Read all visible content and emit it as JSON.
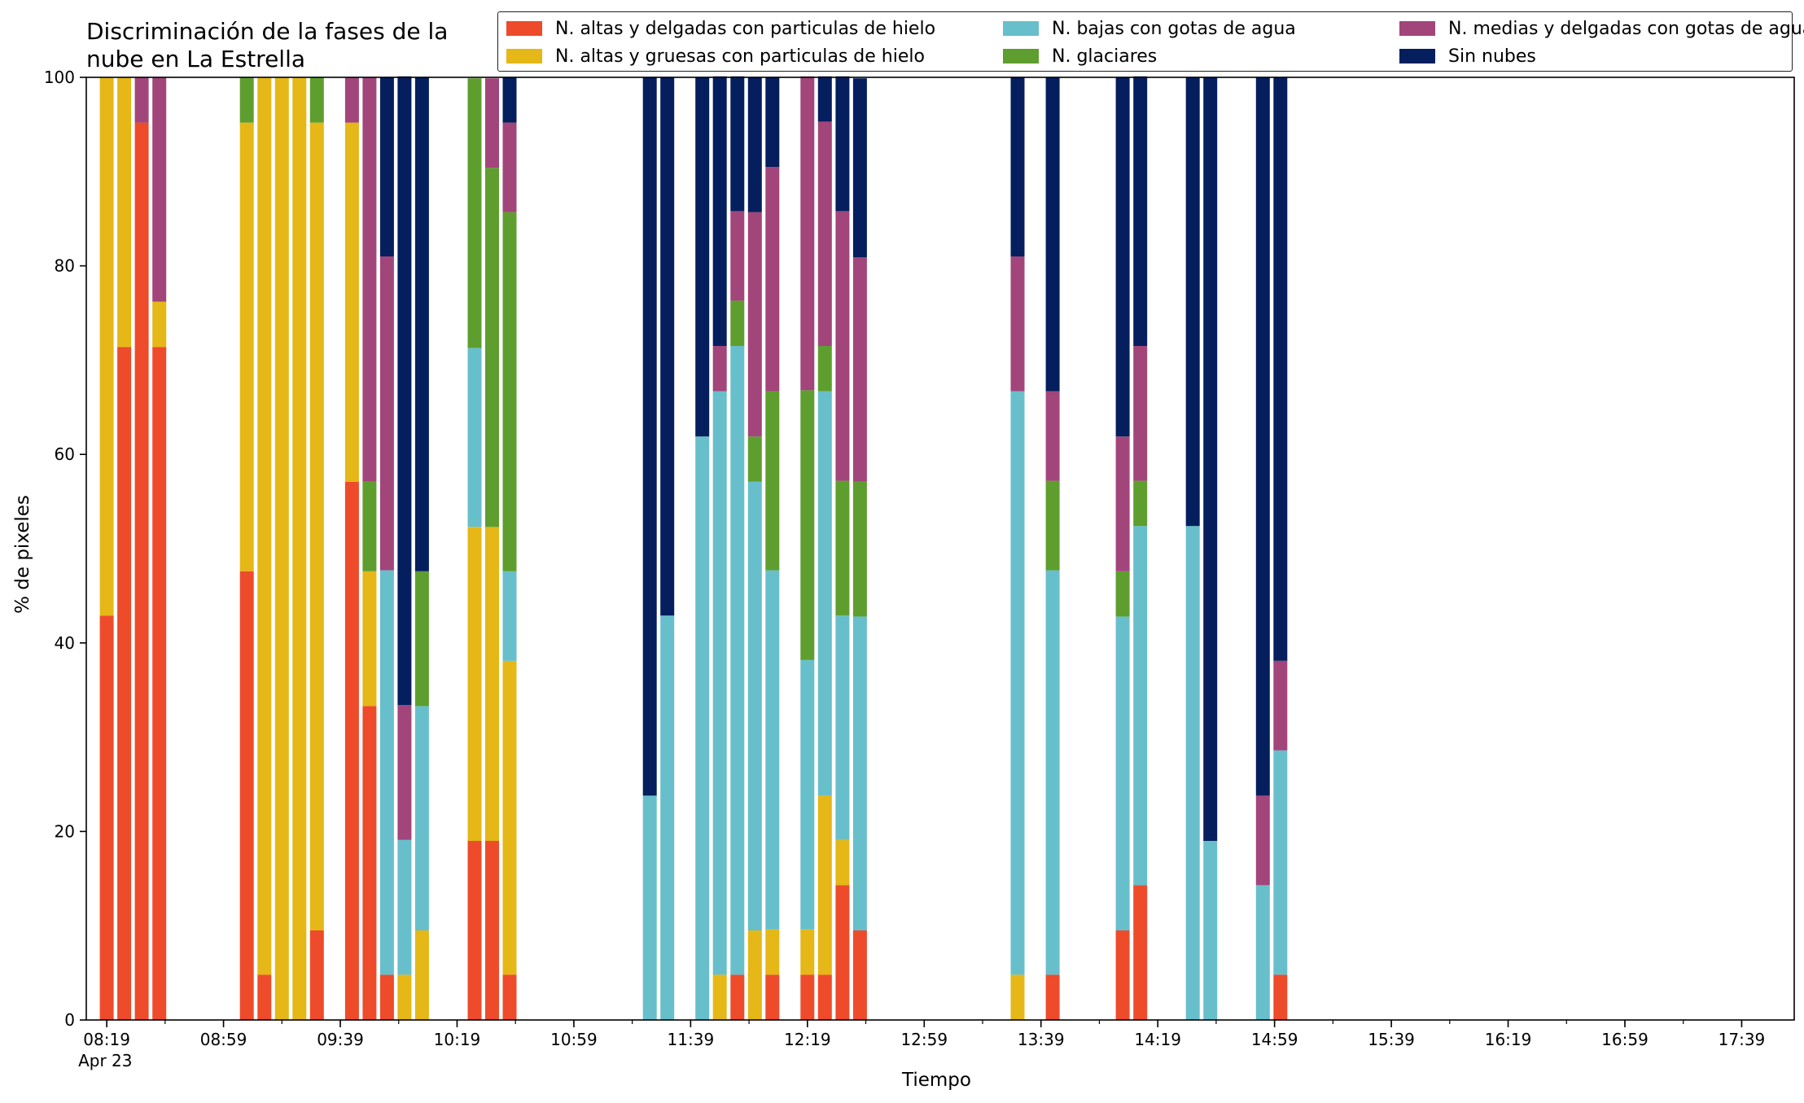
{
  "chart_data": {
    "type": "bar",
    "stacked": true,
    "title_lines": [
      "Discriminación de la fases de la",
      "nube en La Estrella"
    ],
    "xlabel": "Tiempo",
    "ylabel": "% de pixeles",
    "ylim": [
      0,
      100
    ],
    "yticks": [
      0,
      20,
      40,
      60,
      80,
      100
    ],
    "x_ticks": [
      {
        "time": "08:19",
        "label": "08:19",
        "sublabel": "Apr 23"
      },
      {
        "time": "08:59",
        "label": "08:59"
      },
      {
        "time": "09:39",
        "label": "09:39"
      },
      {
        "time": "10:19",
        "label": "10:19"
      },
      {
        "time": "10:59",
        "label": "10:59"
      },
      {
        "time": "11:39",
        "label": "11:39"
      },
      {
        "time": "12:19",
        "label": "12:19"
      },
      {
        "time": "12:59",
        "label": "12:59"
      },
      {
        "time": "13:39",
        "label": "13:39"
      },
      {
        "time": "14:19",
        "label": "14:19"
      },
      {
        "time": "14:59",
        "label": "14:59"
      },
      {
        "time": "15:39",
        "label": "15:39"
      },
      {
        "time": "16:19",
        "label": "16:19"
      },
      {
        "time": "16:59",
        "label": "16:59"
      },
      {
        "time": "17:39",
        "label": "17:39"
      }
    ],
    "legend_position": "top-right",
    "series": [
      {
        "name": "N. altas y delgadas con particulas de hielo",
        "color": "#ee4b2b"
      },
      {
        "name": "N. altas y gruesas con particulas de hielo",
        "color": "#e5b717"
      },
      {
        "name": "N. bajas con gotas de agua",
        "color": "#67bfcb"
      },
      {
        "name": "N. glaciares",
        "color": "#5e9e2e"
      },
      {
        "name": "N. medias y delgadas con gotas de agua",
        "color": "#a2457a"
      },
      {
        "name": "Sin nubes",
        "color": "#051e5e"
      }
    ],
    "bars": [
      {
        "x": "08:19",
        "values": [
          42.9,
          57.1,
          0,
          0,
          0,
          0
        ]
      },
      {
        "x": "08:25",
        "values": [
          71.4,
          28.6,
          0,
          0,
          0,
          0
        ]
      },
      {
        "x": "08:31",
        "values": [
          95.2,
          0,
          0,
          0,
          4.8,
          0
        ]
      },
      {
        "x": "08:37",
        "values": [
          71.4,
          4.8,
          0,
          0,
          23.8,
          0
        ]
      },
      {
        "x": "09:07",
        "values": [
          47.6,
          47.6,
          0,
          4.8,
          0,
          0
        ]
      },
      {
        "x": "09:13",
        "values": [
          4.8,
          95.2,
          0,
          0,
          0,
          0
        ]
      },
      {
        "x": "09:19",
        "values": [
          0,
          100,
          0,
          0,
          0,
          0
        ]
      },
      {
        "x": "09:25",
        "values": [
          0,
          100,
          0,
          0,
          0,
          0
        ]
      },
      {
        "x": "09:31",
        "values": [
          9.5,
          85.7,
          0,
          4.8,
          0,
          0
        ]
      },
      {
        "x": "09:43",
        "values": [
          57.1,
          38.1,
          0,
          0,
          4.8,
          0
        ]
      },
      {
        "x": "09:49",
        "values": [
          33.3,
          14.3,
          0,
          9.5,
          42.9,
          0
        ]
      },
      {
        "x": "09:55",
        "values": [
          4.8,
          0,
          42.9,
          0,
          33.3,
          19.0
        ]
      },
      {
        "x": "10:01",
        "values": [
          0,
          4.8,
          14.3,
          0,
          14.3,
          66.7
        ]
      },
      {
        "x": "10:07",
        "values": [
          0,
          9.5,
          23.8,
          14.3,
          0,
          52.4
        ]
      },
      {
        "x": "10:25",
        "values": [
          19.0,
          33.3,
          19.0,
          28.6,
          0,
          0
        ]
      },
      {
        "x": "10:31",
        "values": [
          19.0,
          33.3,
          0,
          38.1,
          9.5,
          0
        ]
      },
      {
        "x": "10:37",
        "values": [
          4.8,
          33.3,
          9.5,
          38.1,
          9.5,
          4.8
        ]
      },
      {
        "x": "11:25",
        "values": [
          0,
          0,
          23.8,
          0,
          0,
          76.2
        ]
      },
      {
        "x": "11:31",
        "values": [
          0,
          0,
          42.9,
          0,
          0,
          57.1
        ]
      },
      {
        "x": "11:43",
        "values": [
          0,
          0,
          61.9,
          0,
          0,
          38.1
        ]
      },
      {
        "x": "11:49",
        "values": [
          0,
          4.8,
          61.9,
          0,
          4.8,
          28.6
        ]
      },
      {
        "x": "11:55",
        "values": [
          4.8,
          0,
          66.7,
          4.8,
          9.5,
          14.3
        ]
      },
      {
        "x": "12:01",
        "values": [
          0,
          9.5,
          47.6,
          4.8,
          23.8,
          14.3
        ]
      },
      {
        "x": "12:07",
        "values": [
          4.8,
          4.8,
          38.1,
          19.0,
          23.8,
          9.5
        ]
      },
      {
        "x": "12:19",
        "values": [
          4.8,
          4.8,
          28.6,
          28.6,
          33.3,
          0
        ]
      },
      {
        "x": "12:25",
        "values": [
          4.8,
          19.0,
          42.9,
          4.8,
          23.8,
          4.8
        ]
      },
      {
        "x": "12:31",
        "values": [
          14.3,
          4.8,
          23.8,
          14.3,
          28.6,
          14.3
        ]
      },
      {
        "x": "12:37",
        "values": [
          9.5,
          0,
          33.3,
          14.3,
          23.8,
          19.0
        ]
      },
      {
        "x": "13:31",
        "values": [
          0,
          4.8,
          61.9,
          0,
          14.3,
          19.0
        ]
      },
      {
        "x": "13:43",
        "values": [
          4.8,
          0,
          42.9,
          9.5,
          9.5,
          33.3
        ]
      },
      {
        "x": "14:07",
        "values": [
          9.5,
          0,
          33.3,
          4.8,
          14.3,
          38.1
        ]
      },
      {
        "x": "14:13",
        "values": [
          14.3,
          0,
          38.1,
          4.8,
          14.3,
          28.6
        ]
      },
      {
        "x": "14:31",
        "values": [
          0,
          0,
          52.4,
          0,
          0,
          47.6
        ]
      },
      {
        "x": "14:37",
        "values": [
          0,
          0,
          19.0,
          0,
          0,
          81.0
        ]
      },
      {
        "x": "14:55",
        "values": [
          0,
          0,
          14.3,
          0,
          9.5,
          76.2
        ]
      },
      {
        "x": "15:01",
        "values": [
          4.8,
          0,
          23.8,
          0,
          9.5,
          61.9
        ]
      }
    ]
  }
}
